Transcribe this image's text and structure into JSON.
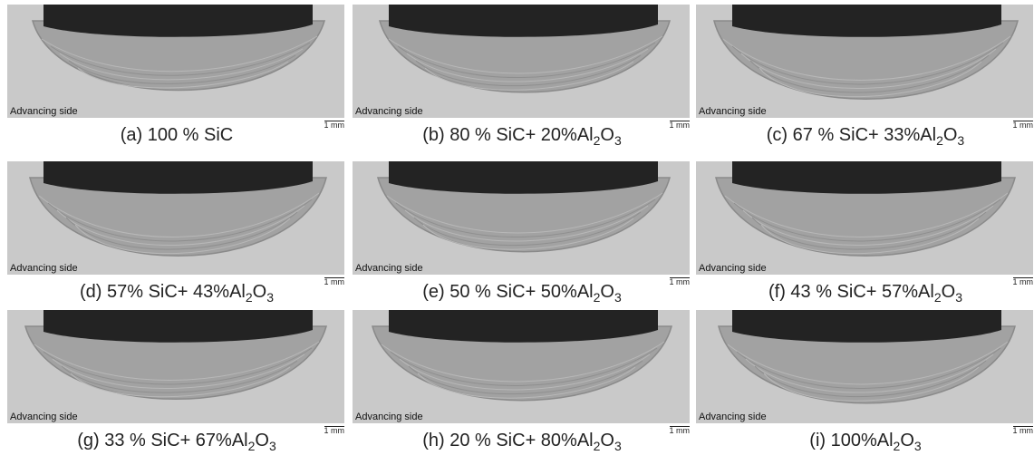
{
  "panels": [
    {
      "side_label": "Advancing side",
      "scale": "1 mm",
      "caption": [
        {
          "text": "(a) 100 % SiC"
        }
      ]
    },
    {
      "side_label": "Advancing side",
      "scale": "1 mm",
      "caption": [
        {
          "text": "(b) 80 % SiC+ 20%Al"
        },
        {
          "sub": "2"
        },
        {
          "text": "O"
        },
        {
          "sub": "3"
        }
      ]
    },
    {
      "side_label": "Advancing side",
      "scale": "1 mm",
      "caption": [
        {
          "text": "(c) 67 % SiC+ 33%Al"
        },
        {
          "sub": "2"
        },
        {
          "text": "O"
        },
        {
          "sub": "3"
        }
      ]
    },
    {
      "side_label": "Advancing side",
      "scale": "1 mm",
      "caption": [
        {
          "text": "(d) 57% SiC+ 43%Al"
        },
        {
          "sub": "2"
        },
        {
          "text": "O"
        },
        {
          "sub": "3"
        }
      ]
    },
    {
      "side_label": "Advancing side",
      "scale": "1 mm",
      "caption": [
        {
          "text": "(e) 50 % SiC+ 50%Al"
        },
        {
          "sub": "2"
        },
        {
          "text": "O"
        },
        {
          "sub": "3"
        }
      ]
    },
    {
      "side_label": "Advancing side",
      "scale": "1 mm",
      "caption": [
        {
          "text": "(f) 43 % SiC+ 57%Al"
        },
        {
          "sub": "2"
        },
        {
          "text": "O"
        },
        {
          "sub": "3"
        }
      ]
    },
    {
      "side_label": "Advancing side",
      "scale": "1 mm",
      "caption": [
        {
          "text": "(g) 33 % SiC+ 67%Al"
        },
        {
          "sub": "2"
        },
        {
          "text": "O"
        },
        {
          "sub": "3"
        }
      ]
    },
    {
      "side_label": "Advancing side",
      "scale": "1 mm",
      "caption": [
        {
          "text": "(h) 20 % SiC+ 80%Al"
        },
        {
          "sub": "2"
        },
        {
          "text": "O"
        },
        {
          "sub": "3"
        }
      ]
    },
    {
      "side_label": "Advancing side",
      "scale": "1 mm",
      "caption": [
        {
          "text": "(i) 100%Al"
        },
        {
          "sub": "2"
        },
        {
          "text": "O"
        },
        {
          "sub": "3"
        }
      ]
    }
  ]
}
